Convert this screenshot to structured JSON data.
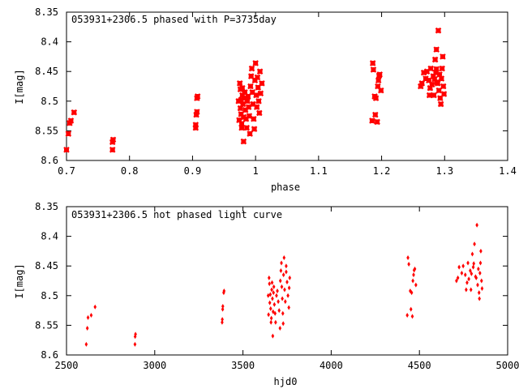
{
  "chart_data": [
    {
      "type": "scatter",
      "title": "053931+2306.5 phased with P=3735day",
      "xlabel": "phase",
      "ylabel": "I[mag]",
      "xlim": [
        0.7,
        1.4
      ],
      "ylim": [
        8.6,
        8.35
      ],
      "y_inverted": true,
      "xticks": [
        "0.7",
        "0.8",
        "0.9",
        "1",
        "1.1",
        "1.2",
        "1.3",
        "1.4"
      ],
      "yticks": [
        "8.35",
        "8.4",
        "8.45",
        "8.5",
        "8.55",
        "8.6"
      ],
      "grid": false,
      "legend": "none",
      "marker": "cross",
      "color": "#ff0000",
      "series": [
        {
          "points": [
            [
              0.7,
              8.582
            ],
            [
              0.703,
              8.555
            ],
            [
              0.705,
              8.537
            ],
            [
              0.707,
              8.533
            ],
            [
              0.712,
              8.519
            ],
            [
              0.773,
              8.582
            ],
            [
              0.773,
              8.569
            ],
            [
              0.774,
              8.565
            ],
            [
              0.905,
              8.545
            ],
            [
              0.905,
              8.54
            ],
            [
              0.906,
              8.523
            ],
            [
              0.907,
              8.518
            ],
            [
              0.907,
              8.495
            ],
            [
              0.908,
              8.492
            ],
            [
              0.973,
              8.5
            ],
            [
              0.974,
              8.532
            ],
            [
              0.975,
              8.47
            ],
            [
              0.976,
              8.48
            ],
            [
              0.976,
              8.512
            ],
            [
              0.977,
              8.498
            ],
            [
              0.977,
              8.522
            ],
            [
              0.978,
              8.545
            ],
            [
              0.978,
              8.538
            ],
            [
              0.979,
              8.49
            ],
            [
              0.979,
              8.478
            ],
            [
              0.98,
              8.505
            ],
            [
              0.981,
              8.568
            ],
            [
              0.981,
              8.527
            ],
            [
              0.982,
              8.495
            ],
            [
              0.983,
              8.485
            ],
            [
              0.984,
              8.515
            ],
            [
              0.985,
              8.53
            ],
            [
              0.986,
              8.545
            ],
            [
              0.987,
              8.5
            ],
            [
              0.988,
              8.492
            ],
            [
              0.989,
              8.51
            ],
            [
              0.99,
              8.525
            ],
            [
              0.991,
              8.555
            ],
            [
              0.992,
              8.475
            ],
            [
              0.993,
              8.458
            ],
            [
              0.994,
              8.445
            ],
            [
              0.995,
              8.485
            ],
            [
              0.996,
              8.505
            ],
            [
              0.997,
              8.53
            ],
            [
              0.998,
              8.547
            ],
            [
              0.999,
              8.465
            ],
            [
              1.0,
              8.436
            ],
            [
              1.001,
              8.49
            ],
            [
              1.002,
              8.51
            ],
            [
              1.003,
              8.46
            ],
            [
              1.004,
              8.477
            ],
            [
              1.005,
              8.5
            ],
            [
              1.006,
              8.52
            ],
            [
              1.007,
              8.45
            ],
            [
              1.008,
              8.487
            ],
            [
              1.01,
              8.47
            ],
            [
              1.185,
              8.533
            ],
            [
              1.186,
              8.436
            ],
            [
              1.187,
              8.447
            ],
            [
              1.189,
              8.492
            ],
            [
              1.19,
              8.523
            ],
            [
              1.191,
              8.495
            ],
            [
              1.193,
              8.535
            ],
            [
              1.194,
              8.475
            ],
            [
              1.195,
              8.465
            ],
            [
              1.196,
              8.457
            ],
            [
              1.197,
              8.455
            ],
            [
              1.199,
              8.482
            ],
            [
              1.262,
              8.475
            ],
            [
              1.264,
              8.47
            ],
            [
              1.267,
              8.452
            ],
            [
              1.27,
              8.462
            ],
            [
              1.272,
              8.45
            ],
            [
              1.275,
              8.465
            ],
            [
              1.276,
              8.49
            ],
            [
              1.277,
              8.478
            ],
            [
              1.278,
              8.445
            ],
            [
              1.28,
              8.472
            ],
            [
              1.282,
              8.458
            ],
            [
              1.283,
              8.49
            ],
            [
              1.284,
              8.463
            ],
            [
              1.285,
              8.43
            ],
            [
              1.286,
              8.452
            ],
            [
              1.287,
              8.446
            ],
            [
              1.287,
              8.413
            ],
            [
              1.288,
              8.468
            ],
            [
              1.289,
              8.47
            ],
            [
              1.29,
              8.381
            ],
            [
              1.291,
              8.482
            ],
            [
              1.292,
              8.455
            ],
            [
              1.293,
              8.495
            ],
            [
              1.294,
              8.505
            ],
            [
              1.295,
              8.462
            ],
            [
              1.296,
              8.445
            ],
            [
              1.297,
              8.425
            ],
            [
              1.298,
              8.475
            ],
            [
              1.299,
              8.488
            ]
          ]
        }
      ]
    },
    {
      "type": "scatter",
      "title": "053931+2306.5 not phased light curve",
      "xlabel": "hjd0",
      "ylabel": "I[mag]",
      "xlim": [
        2500,
        5000
      ],
      "ylim": [
        8.6,
        8.35
      ],
      "y_inverted": true,
      "xticks": [
        "2500",
        "3000",
        "3500",
        "4000",
        "4500",
        "5000"
      ],
      "yticks": [
        "8.35",
        "8.4",
        "8.45",
        "8.5",
        "8.55",
        "8.6"
      ],
      "grid": false,
      "legend": "none",
      "marker": "diamond",
      "color": "#ff0000",
      "series": [
        {
          "points": [
            [
              2612,
              8.582
            ],
            [
              2618,
              8.555
            ],
            [
              2622,
              8.537
            ],
            [
              2640,
              8.533
            ],
            [
              2662,
              8.519
            ],
            [
              2888,
              8.582
            ],
            [
              2889,
              8.569
            ],
            [
              2891,
              8.565
            ],
            [
              3382,
              8.545
            ],
            [
              3383,
              8.54
            ],
            [
              3385,
              8.523
            ],
            [
              3386,
              8.518
            ],
            [
              3391,
              8.495
            ],
            [
              3393,
              8.492
            ],
            [
              3643,
              8.5
            ],
            [
              3645,
              8.532
            ],
            [
              3648,
              8.47
            ],
            [
              3650,
              8.48
            ],
            [
              3652,
              8.512
            ],
            [
              3655,
              8.498
            ],
            [
              3657,
              8.522
            ],
            [
              3659,
              8.545
            ],
            [
              3661,
              8.538
            ],
            [
              3663,
              8.49
            ],
            [
              3665,
              8.478
            ],
            [
              3667,
              8.505
            ],
            [
              3669,
              8.568
            ],
            [
              3671,
              8.527
            ],
            [
              3673,
              8.495
            ],
            [
              3675,
              8.485
            ],
            [
              3678,
              8.515
            ],
            [
              3682,
              8.53
            ],
            [
              3685,
              8.545
            ],
            [
              3690,
              8.5
            ],
            [
              3695,
              8.492
            ],
            [
              3700,
              8.51
            ],
            [
              3705,
              8.525
            ],
            [
              3710,
              8.555
            ],
            [
              3712,
              8.475
            ],
            [
              3715,
              8.458
            ],
            [
              3718,
              8.445
            ],
            [
              3720,
              8.485
            ],
            [
              3723,
              8.505
            ],
            [
              3726,
              8.53
            ],
            [
              3728,
              8.547
            ],
            [
              3730,
              8.465
            ],
            [
              3733,
              8.436
            ],
            [
              3736,
              8.49
            ],
            [
              3740,
              8.51
            ],
            [
              3745,
              8.46
            ],
            [
              3750,
              8.477
            ],
            [
              3755,
              8.5
            ],
            [
              3760,
              8.52
            ],
            [
              3745,
              8.45
            ],
            [
              3762,
              8.487
            ],
            [
              3765,
              8.47
            ],
            [
              4431,
              8.533
            ],
            [
              4435,
              8.436
            ],
            [
              4440,
              8.447
            ],
            [
              4448,
              8.492
            ],
            [
              4452,
              8.523
            ],
            [
              4456,
              8.495
            ],
            [
              4460,
              8.535
            ],
            [
              4463,
              8.475
            ],
            [
              4467,
              8.465
            ],
            [
              4470,
              8.457
            ],
            [
              4474,
              8.455
            ],
            [
              4480,
              8.482
            ],
            [
              4710,
              8.475
            ],
            [
              4718,
              8.47
            ],
            [
              4725,
              8.452
            ],
            [
              4740,
              8.462
            ],
            [
              4748,
              8.45
            ],
            [
              4760,
              8.465
            ],
            [
              4765,
              8.49
            ],
            [
              4770,
              8.478
            ],
            [
              4775,
              8.445
            ],
            [
              4780,
              8.472
            ],
            [
              4788,
              8.458
            ],
            [
              4792,
              8.49
            ],
            [
              4795,
              8.463
            ],
            [
              4800,
              8.43
            ],
            [
              4805,
              8.452
            ],
            [
              4808,
              8.446
            ],
            [
              4812,
              8.413
            ],
            [
              4818,
              8.468
            ],
            [
              4822,
              8.47
            ],
            [
              4826,
              8.381
            ],
            [
              4830,
              8.482
            ],
            [
              4834,
              8.455
            ],
            [
              4838,
              8.495
            ],
            [
              4840,
              8.505
            ],
            [
              4843,
              8.462
            ],
            [
              4846,
              8.445
            ],
            [
              4848,
              8.425
            ],
            [
              4852,
              8.475
            ],
            [
              4855,
              8.488
            ]
          ]
        }
      ]
    }
  ]
}
